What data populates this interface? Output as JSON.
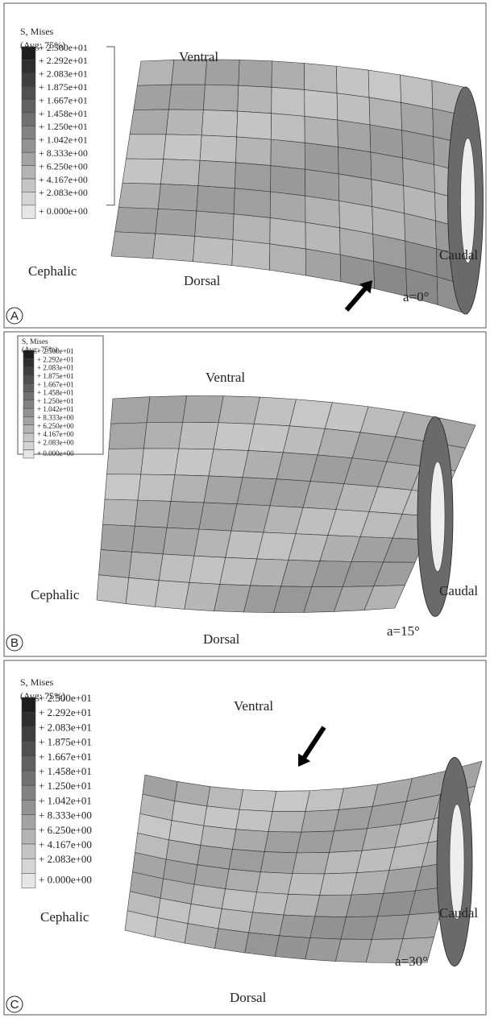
{
  "panels": [
    {
      "letter": "A",
      "legend": {
        "title": "S, Mises",
        "subtitle": "(Avg: 75%)",
        "labels": [
          "+ 2.500e+01",
          "+ 2.292e+01",
          "+ 2.083e+01",
          "+ 1.875e+01",
          "+ 1.667e+01",
          "+ 1.458e+01",
          "+ 1.250e+01",
          "+ 1.042e+01",
          "+ 8.333e+00",
          "+ 6.250e+00",
          "+ 4.167e+00",
          "+ 2.083e+00",
          "+ 0.000e+00"
        ]
      },
      "ventral": "Ventral",
      "dorsal": "Dorsal",
      "cephalic": "Cephalic",
      "caudal": "Caudal",
      "angle": "a=0°"
    },
    {
      "letter": "B",
      "legend": {
        "title": "S, Mises",
        "subtitle": "(Avg: 75%)",
        "labels": [
          "+ 2.500e+01",
          "+ 2.292e+01",
          "+ 2.083e+01",
          "+ 1.875e+01",
          "+ 1.667e+01",
          "+ 1.458e+01",
          "+ 1.250e+01",
          "+ 1.042e+01",
          "+ 8.333e+00",
          "+ 6.250e+00",
          "+ 4.167e+00",
          "+ 2.083e+00",
          "+ 0.000e+00"
        ]
      },
      "ventral": "Ventral",
      "dorsal": "Dorsal",
      "cephalic": "Cephalic",
      "caudal": "Caudal",
      "angle": "a=15°"
    },
    {
      "letter": "C",
      "legend": {
        "title": "S, Mises",
        "subtitle": "(Avg: 75%)",
        "labels": [
          "+ 2.500e+01",
          "+ 2.292e+01",
          "+ 2.083e+01",
          "+ 1.875e+01",
          "+ 1.667e+01",
          "+ 1.458e+01",
          "+ 1.250e+01",
          "+ 1.042e+01",
          "+ 8.333e+00",
          "+ 6.250e+00",
          "+ 4.167e+00",
          "+ 2.083e+00",
          "+ 0.000e+00"
        ]
      },
      "ventral": "Ventral",
      "dorsal": "Dorsal",
      "cephalic": "Cephalic",
      "caudal": "Caudal",
      "angle": "a=30°"
    }
  ]
}
